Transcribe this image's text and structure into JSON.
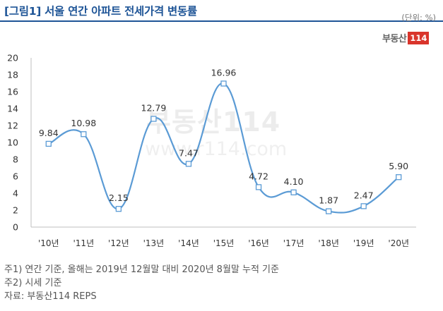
{
  "title": "[그림1] 서울 연간 아파트 전세가격 변동률",
  "unit": "(단위: %)",
  "logo": {
    "text": "부동산",
    "badge": "114"
  },
  "watermark": {
    "brand": "부동산114",
    "url": "www.r114.com"
  },
  "notes": [
    "주1) 연간 기준, 올해는 2019년 12월말 대비 2020년 8월말 누적 기준",
    "주2) 시세 기준",
    "자료: 부동산114 REPS"
  ],
  "colors": {
    "title": "#1f5597",
    "line": "#5b9bd5",
    "marker_fill": "#ffffff"
  },
  "chart_data": {
    "type": "line",
    "categories": [
      "'10년",
      "'11년",
      "'12년",
      "'13년",
      "'14년",
      "'15년",
      "'16년",
      "'17년",
      "'18년",
      "'19년",
      "'20년"
    ],
    "series": [
      {
        "values": [
          9.84,
          10.98,
          2.15,
          12.79,
          7.47,
          16.96,
          4.72,
          4.1,
          1.87,
          2.47,
          5.9
        ]
      }
    ],
    "data_labels": [
      "9.84",
      "10.98",
      "2.15",
      "12.79",
      "7.47",
      "16.96",
      "4.72",
      "4.10",
      "1.87",
      "2.47",
      "5.90"
    ],
    "ylim": [
      0,
      20
    ],
    "yticks": [
      0,
      2,
      4,
      6,
      8,
      10,
      12,
      14,
      16,
      18,
      20
    ],
    "smooth": true,
    "marker": "square",
    "grid": false,
    "legend": "none"
  }
}
